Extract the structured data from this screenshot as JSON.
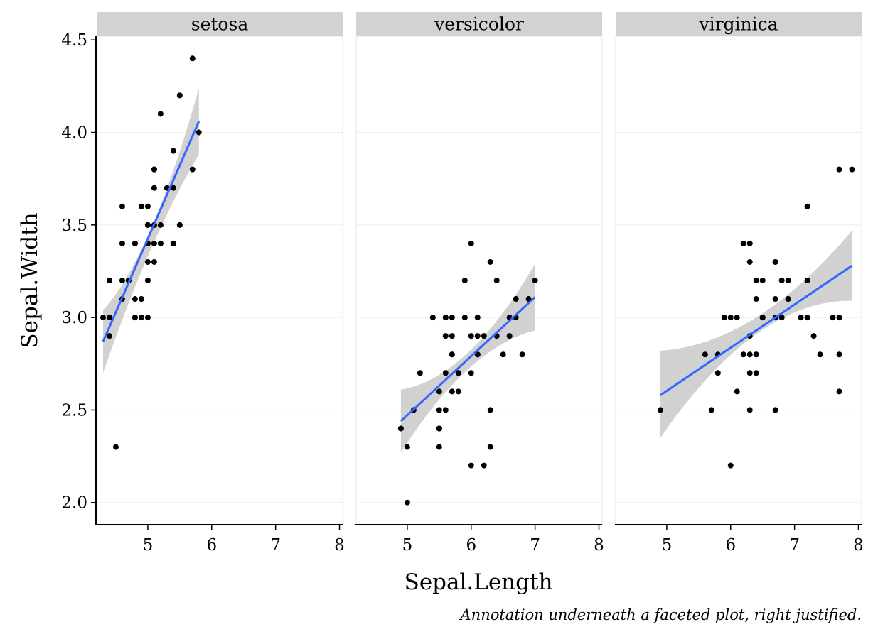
{
  "chart_data": {
    "type": "scatter",
    "facet_variable": "Species",
    "xlabel": "Sepal.Length",
    "ylabel": "Sepal.Width",
    "xlim": [
      4.2,
      8.05
    ],
    "ylim": [
      1.88,
      4.52
    ],
    "x_ticks": [
      "5",
      "6",
      "7",
      "8"
    ],
    "y_ticks": [
      "2.0",
      "2.5",
      "3.0",
      "3.5",
      "4.0",
      "4.5"
    ],
    "caption": "Annotation underneath a faceted plot, right justified.",
    "grid": true,
    "smooth": {
      "method": "lm",
      "line_color": "#3366ff",
      "band_color": "#cccccc"
    },
    "point_color": "#000000",
    "facets": [
      {
        "label": "setosa",
        "points": [
          [
            5.1,
            3.5
          ],
          [
            4.9,
            3.0
          ],
          [
            4.7,
            3.2
          ],
          [
            4.6,
            3.1
          ],
          [
            5.0,
            3.6
          ],
          [
            5.4,
            3.9
          ],
          [
            4.6,
            3.4
          ],
          [
            5.0,
            3.4
          ],
          [
            4.4,
            2.9
          ],
          [
            4.9,
            3.1
          ],
          [
            5.4,
            3.7
          ],
          [
            4.8,
            3.4
          ],
          [
            4.8,
            3.0
          ],
          [
            4.3,
            3.0
          ],
          [
            5.8,
            4.0
          ],
          [
            5.7,
            4.4
          ],
          [
            5.4,
            3.9
          ],
          [
            5.1,
            3.5
          ],
          [
            5.7,
            3.8
          ],
          [
            5.1,
            3.8
          ],
          [
            5.4,
            3.4
          ],
          [
            5.1,
            3.7
          ],
          [
            4.6,
            3.6
          ],
          [
            5.1,
            3.3
          ],
          [
            4.8,
            3.4
          ],
          [
            5.0,
            3.0
          ],
          [
            5.0,
            3.4
          ],
          [
            5.2,
            3.5
          ],
          [
            5.2,
            3.4
          ],
          [
            4.7,
            3.2
          ],
          [
            4.8,
            3.1
          ],
          [
            5.4,
            3.4
          ],
          [
            5.2,
            4.1
          ],
          [
            5.5,
            4.2
          ],
          [
            4.9,
            3.1
          ],
          [
            5.0,
            3.2
          ],
          [
            5.5,
            3.5
          ],
          [
            4.9,
            3.6
          ],
          [
            4.4,
            3.0
          ],
          [
            5.1,
            3.4
          ],
          [
            5.0,
            3.5
          ],
          [
            4.5,
            2.3
          ],
          [
            4.4,
            3.2
          ],
          [
            5.0,
            3.5
          ],
          [
            5.1,
            3.8
          ],
          [
            4.8,
            3.0
          ],
          [
            5.1,
            3.8
          ],
          [
            4.6,
            3.2
          ],
          [
            5.3,
            3.7
          ],
          [
            5.0,
            3.3
          ]
        ],
        "fit": {
          "x": [
            4.3,
            5.8
          ],
          "y": [
            2.87,
            4.06
          ],
          "ci_low": [
            2.7,
            3.88
          ],
          "ci_mid_low": 3.37,
          "ci_mid_high": 3.48,
          "ci_high": [
            3.04,
            4.24
          ]
        }
      },
      {
        "label": "versicolor",
        "points": [
          [
            7.0,
            3.2
          ],
          [
            6.4,
            3.2
          ],
          [
            6.9,
            3.1
          ],
          [
            5.5,
            2.3
          ],
          [
            6.5,
            2.8
          ],
          [
            5.7,
            2.8
          ],
          [
            6.3,
            3.3
          ],
          [
            4.9,
            2.4
          ],
          [
            6.6,
            2.9
          ],
          [
            5.2,
            2.7
          ],
          [
            5.0,
            2.0
          ],
          [
            5.9,
            3.0
          ],
          [
            6.0,
            2.2
          ],
          [
            6.1,
            2.9
          ],
          [
            5.6,
            2.9
          ],
          [
            6.7,
            3.1
          ],
          [
            5.6,
            3.0
          ],
          [
            5.8,
            2.7
          ],
          [
            6.2,
            2.2
          ],
          [
            5.6,
            2.5
          ],
          [
            5.9,
            3.2
          ],
          [
            6.1,
            2.8
          ],
          [
            6.3,
            2.5
          ],
          [
            6.1,
            2.8
          ],
          [
            6.4,
            2.9
          ],
          [
            6.6,
            3.0
          ],
          [
            6.8,
            2.8
          ],
          [
            6.7,
            3.0
          ],
          [
            6.0,
            2.9
          ],
          [
            5.7,
            2.6
          ],
          [
            5.5,
            2.4
          ],
          [
            5.5,
            2.4
          ],
          [
            5.8,
            2.7
          ],
          [
            6.0,
            2.7
          ],
          [
            5.4,
            3.0
          ],
          [
            6.0,
            3.4
          ],
          [
            6.7,
            3.1
          ],
          [
            6.3,
            2.3
          ],
          [
            5.6,
            3.0
          ],
          [
            5.5,
            2.5
          ],
          [
            5.5,
            2.6
          ],
          [
            6.1,
            3.0
          ],
          [
            5.8,
            2.6
          ],
          [
            5.0,
            2.3
          ],
          [
            5.6,
            2.7
          ],
          [
            5.7,
            3.0
          ],
          [
            5.7,
            2.9
          ],
          [
            6.2,
            2.9
          ],
          [
            5.1,
            2.5
          ],
          [
            5.7,
            2.8
          ]
        ],
        "fit": {
          "x": [
            4.9,
            7.0
          ],
          "y": [
            2.44,
            3.11
          ],
          "ci_low": [
            2.27,
            2.93
          ],
          "ci_mid_low": 2.72,
          "ci_mid_high": 2.81,
          "ci_high": [
            2.61,
            3.29
          ]
        }
      },
      {
        "label": "virginica",
        "points": [
          [
            6.3,
            3.3
          ],
          [
            5.8,
            2.7
          ],
          [
            7.1,
            3.0
          ],
          [
            6.3,
            2.9
          ],
          [
            6.5,
            3.0
          ],
          [
            7.6,
            3.0
          ],
          [
            4.9,
            2.5
          ],
          [
            7.3,
            2.9
          ],
          [
            6.7,
            2.5
          ],
          [
            7.2,
            3.6
          ],
          [
            6.5,
            3.2
          ],
          [
            6.4,
            2.7
          ],
          [
            6.8,
            3.0
          ],
          [
            5.7,
            2.5
          ],
          [
            5.8,
            2.8
          ],
          [
            6.4,
            3.2
          ],
          [
            6.5,
            3.0
          ],
          [
            7.7,
            3.8
          ],
          [
            7.7,
            2.6
          ],
          [
            6.0,
            2.2
          ],
          [
            6.9,
            3.2
          ],
          [
            5.6,
            2.8
          ],
          [
            7.7,
            2.8
          ],
          [
            6.3,
            2.7
          ],
          [
            6.7,
            3.3
          ],
          [
            7.2,
            3.2
          ],
          [
            6.2,
            2.8
          ],
          [
            6.1,
            3.0
          ],
          [
            6.4,
            2.8
          ],
          [
            7.2,
            3.0
          ],
          [
            7.4,
            2.8
          ],
          [
            7.9,
            3.8
          ],
          [
            6.4,
            2.8
          ],
          [
            6.3,
            2.8
          ],
          [
            6.1,
            2.6
          ],
          [
            7.7,
            3.0
          ],
          [
            6.3,
            3.4
          ],
          [
            6.4,
            3.1
          ],
          [
            6.0,
            3.0
          ],
          [
            6.9,
            3.1
          ],
          [
            6.7,
            3.1
          ],
          [
            6.9,
            3.1
          ],
          [
            5.8,
            2.7
          ],
          [
            6.8,
            3.2
          ],
          [
            6.7,
            3.3
          ],
          [
            6.7,
            3.0
          ],
          [
            6.3,
            2.5
          ],
          [
            6.5,
            3.0
          ],
          [
            6.2,
            3.4
          ],
          [
            5.9,
            3.0
          ]
        ],
        "fit": {
          "x": [
            4.9,
            7.9
          ],
          "y": [
            2.58,
            3.28
          ],
          "ci_low": [
            2.35,
            3.09
          ],
          "ci_mid_low": 2.91,
          "ci_mid_high": 3.0,
          "ci_high": [
            2.82,
            3.47
          ]
        }
      }
    ]
  }
}
